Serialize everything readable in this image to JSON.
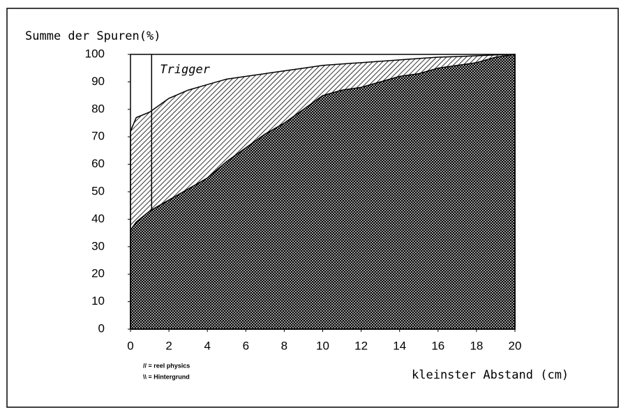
{
  "chart_data": {
    "type": "area",
    "title": "Summe der Spuren(%)",
    "x_label": "kleinster Abstand (cm)",
    "x": [
      0,
      0.3,
      1,
      2,
      3,
      4,
      5,
      6,
      7,
      8,
      9,
      10,
      11,
      12,
      13,
      14,
      15,
      16,
      17,
      18,
      19,
      20
    ],
    "series": [
      {
        "name": "// = reel physics",
        "color": "#000000",
        "pattern": "diagonal",
        "values": [
          72,
          77,
          79,
          84,
          87,
          89,
          91,
          92,
          93,
          94,
          95,
          96,
          96.5,
          97,
          97.5,
          98,
          98.5,
          99,
          99.2,
          99.5,
          99.8,
          100
        ]
      },
      {
        "name": "\\\\ = Hintergrund",
        "color": "#000000",
        "pattern": "crosshatch",
        "values": [
          36,
          39,
          43,
          47,
          51,
          55,
          61,
          66,
          71,
          75,
          80,
          85,
          87,
          88,
          90,
          92,
          93,
          95,
          96,
          97,
          99,
          100
        ]
      }
    ],
    "annotations": [
      {
        "text": "Trigger",
        "x": 1.1
      }
    ],
    "xlim": [
      0,
      20
    ],
    "xticks": [
      0,
      2,
      4,
      6,
      8,
      10,
      12,
      14,
      16,
      18,
      20
    ],
    "ylim": [
      0,
      100
    ],
    "yticks": [
      0,
      10,
      20,
      30,
      40,
      50,
      60,
      70,
      80,
      90,
      100
    ]
  }
}
